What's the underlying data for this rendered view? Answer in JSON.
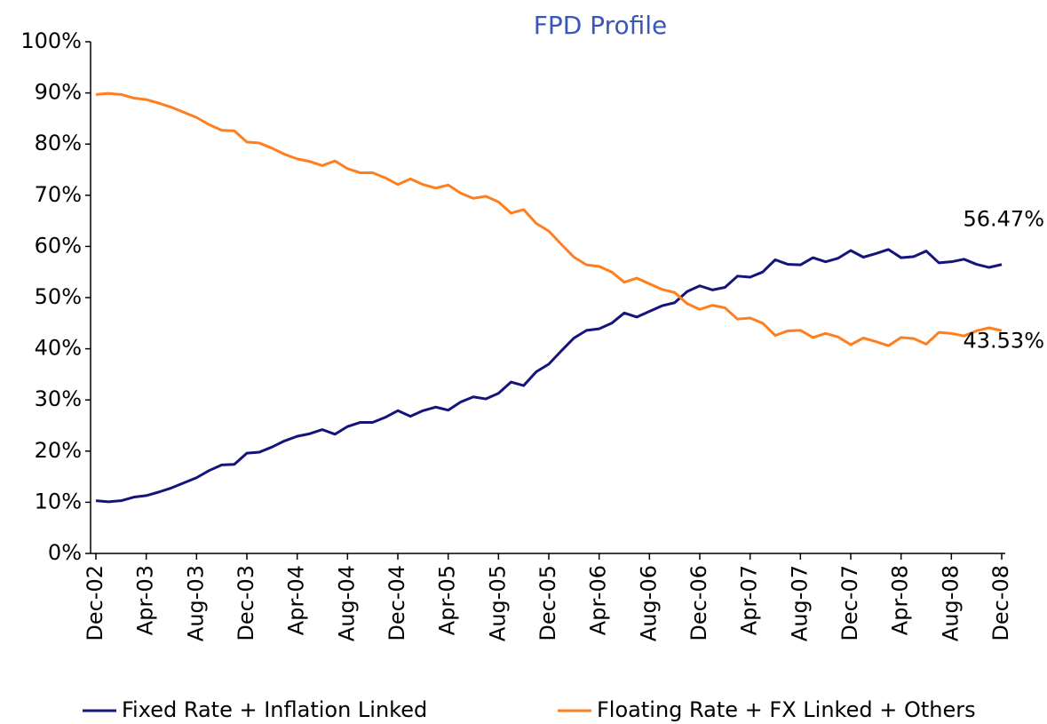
{
  "chart_data": {
    "type": "line",
    "title": "FPD Profile",
    "categories": [
      "Dec-02",
      null,
      null,
      null,
      "Apr-03",
      null,
      null,
      null,
      "Aug-03",
      null,
      null,
      null,
      "Dec-03",
      null,
      null,
      null,
      "Apr-04",
      null,
      null,
      null,
      "Aug-04",
      null,
      null,
      null,
      "Dec-04",
      null,
      null,
      null,
      "Apr-05",
      null,
      null,
      null,
      "Aug-05",
      null,
      null,
      null,
      "Dec-05",
      null,
      null,
      null,
      "Apr-06",
      null,
      null,
      null,
      "Aug-06",
      null,
      null,
      null,
      "Dec-06",
      null,
      null,
      null,
      "Apr-07",
      null,
      null,
      null,
      "Aug-07",
      null,
      null,
      null,
      "Dec-07",
      null,
      null,
      null,
      "Apr-08",
      null,
      null,
      null,
      "Aug-08",
      null,
      null,
      null,
      "Dec-08"
    ],
    "series": [
      {
        "name": "Fixed Rate + Inflation Linked",
        "color": "#14147a",
        "values": [
          10.3,
          10.1,
          10.3,
          11.0,
          11.3,
          12.0,
          12.8,
          13.8,
          14.8,
          16.2,
          17.3,
          17.4,
          19.6,
          19.8,
          20.8,
          22.0,
          22.9,
          23.4,
          24.2,
          23.3,
          24.8,
          25.6,
          25.6,
          26.6,
          27.9,
          26.8,
          27.9,
          28.6,
          28.0,
          29.6,
          30.6,
          30.2,
          31.3,
          33.5,
          32.8,
          35.5,
          37.0,
          39.6,
          42.1,
          43.6,
          43.9,
          45.0,
          47.0,
          46.2,
          47.3,
          48.4,
          49.0,
          51.2,
          52.3,
          51.5,
          52.0,
          54.2,
          54.0,
          55.0,
          57.4,
          56.5,
          56.4,
          57.8,
          57.0,
          57.7,
          59.2,
          57.9,
          58.6,
          59.4,
          57.8,
          58.0,
          59.1,
          56.8,
          57.0,
          57.5,
          56.5,
          55.9,
          56.47
        ],
        "value_labels": [
          null,
          null,
          null,
          null,
          null,
          null,
          null,
          null,
          null,
          null,
          null,
          null,
          null,
          null,
          null,
          null,
          null,
          null,
          null,
          null,
          null,
          null,
          null,
          null,
          null,
          null,
          null,
          null,
          null,
          null,
          null,
          null,
          null,
          null,
          null,
          null,
          null,
          null,
          null,
          null,
          null,
          null,
          null,
          null,
          null,
          null,
          null,
          null,
          null,
          null,
          null,
          null,
          null,
          null,
          null,
          null,
          null,
          null,
          null,
          null,
          null,
          null,
          null,
          null,
          null,
          null,
          null,
          null,
          null,
          null,
          null,
          null,
          "56.47%"
        ]
      },
      {
        "name": "Floating Rate + FX Linked + Others",
        "color": "#ff7f1e",
        "values": [
          89.7,
          89.9,
          89.7,
          89.0,
          88.7,
          88.0,
          87.2,
          86.2,
          85.2,
          83.8,
          82.7,
          82.6,
          80.4,
          80.2,
          79.2,
          78.0,
          77.1,
          76.6,
          75.8,
          76.7,
          75.2,
          74.4,
          74.4,
          73.4,
          72.1,
          73.2,
          72.1,
          71.4,
          72.0,
          70.4,
          69.4,
          69.8,
          68.7,
          66.5,
          67.2,
          64.5,
          63.0,
          60.4,
          57.9,
          56.4,
          56.1,
          55.0,
          53.0,
          53.8,
          52.7,
          51.6,
          51.0,
          48.8,
          47.7,
          48.5,
          48.0,
          45.8,
          46.0,
          45.0,
          42.6,
          43.5,
          43.6,
          42.2,
          43.0,
          42.3,
          40.8,
          42.1,
          41.4,
          40.6,
          42.2,
          42.0,
          40.9,
          43.2,
          43.0,
          42.5,
          43.5,
          44.1,
          43.53
        ],
        "value_labels": [
          null,
          null,
          null,
          null,
          null,
          null,
          null,
          null,
          null,
          null,
          null,
          null,
          null,
          null,
          null,
          null,
          null,
          null,
          null,
          null,
          null,
          null,
          null,
          null,
          null,
          null,
          null,
          null,
          null,
          null,
          null,
          null,
          null,
          null,
          null,
          null,
          null,
          null,
          null,
          null,
          null,
          null,
          null,
          null,
          null,
          null,
          null,
          null,
          null,
          null,
          null,
          null,
          null,
          null,
          null,
          null,
          null,
          null,
          null,
          null,
          null,
          null,
          null,
          null,
          null,
          null,
          null,
          null,
          null,
          null,
          null,
          null,
          "43.53%"
        ]
      }
    ],
    "ylim": [
      0,
      100
    ],
    "yticks": [
      {
        "value": 0,
        "label": "0%"
      },
      {
        "value": 10,
        "label": "10%"
      },
      {
        "value": 20,
        "label": "20%"
      },
      {
        "value": 30,
        "label": "30%"
      },
      {
        "value": 40,
        "label": "40%"
      },
      {
        "value": 50,
        "label": "50%"
      },
      {
        "value": 60,
        "label": "60%"
      },
      {
        "value": 70,
        "label": "70%"
      },
      {
        "value": 80,
        "label": "80%"
      },
      {
        "value": 90,
        "label": "90%"
      },
      {
        "value": 100,
        "label": "100%"
      }
    ],
    "grid": false,
    "legend": "bottom"
  }
}
